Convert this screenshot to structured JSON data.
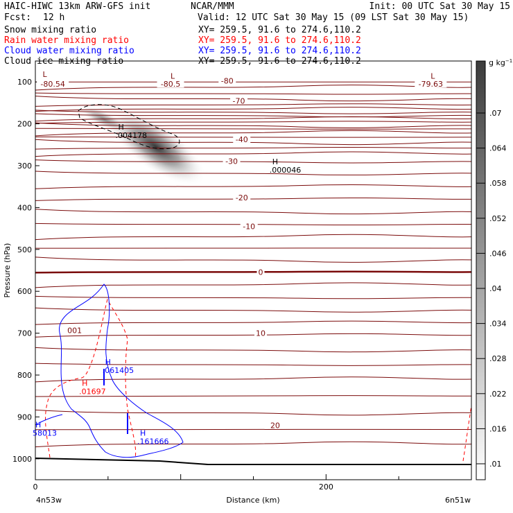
{
  "header": {
    "model": "HAIC-HIWC 13km ARW-GFS init",
    "org": "NCAR/MMM",
    "init": "Init: 00 UTC Sat 30 May 15",
    "fcst_label": "Fcst:",
    "fcst_value": "12 h",
    "valid": "Valid: 12 UTC Sat 30 May 15 (09 LST Sat 30 May 15)"
  },
  "fields": [
    {
      "name": "Snow mixing ratio",
      "xy": "XY= 259.5, 91.6 to 274.6,110.2",
      "color": "#000000"
    },
    {
      "name": "Rain water mixing ratio",
      "xy": "XY= 259.5, 91.6 to 274.6,110.2",
      "color": "#ff0000"
    },
    {
      "name": "Cloud water mixing ratio",
      "xy": "XY= 259.5, 91.6 to 274.6,110.2",
      "color": "#0000ff"
    },
    {
      "name": "Cloud ice mixing ratio",
      "xy": "XY= 259.5, 91.6 to 274.6,110.2",
      "color": "#000000"
    }
  ],
  "colorbar": {
    "unit": "g kg",
    "unit_exp": "−1",
    "labels": [
      ".07",
      ".064",
      ".058",
      ".052",
      ".046",
      ".04",
      ".034",
      ".028",
      ".022",
      ".016",
      ".01"
    ]
  },
  "chart_data": {
    "type": "cross-section",
    "xlabel": "Distance (km)",
    "ylabel": "Pressure (hPa)",
    "x_ticks": [
      "0",
      "200"
    ],
    "x_tick_values": [
      0,
      200
    ],
    "y_ticks": [
      "100",
      "200",
      "300",
      "400",
      "500",
      "600",
      "700",
      "800",
      "900",
      "1000"
    ],
    "y_tick_values": [
      100,
      200,
      300,
      400,
      500,
      600,
      700,
      800,
      900,
      1000
    ],
    "xlim": [
      0,
      300
    ],
    "ylim": [
      1050,
      50
    ],
    "endpoint_left": "4n53w",
    "endpoint_right": "6n51w",
    "temperature_contours": [
      {
        "value": "-80.54",
        "x": 12,
        "p": 105
      },
      {
        "value": "-80.5",
        "x": 93,
        "p": 105
      },
      {
        "value": "-80",
        "x": 132,
        "p": 97
      },
      {
        "value": "-79.63",
        "x": 272,
        "p": 105
      },
      {
        "value": "-70",
        "x": 140,
        "p": 145
      },
      {
        "value": "-40",
        "x": 142,
        "p": 237
      },
      {
        "value": "-30",
        "x": 135,
        "p": 289
      },
      {
        "value": "-20",
        "x": 142,
        "p": 376
      },
      {
        "value": "-10",
        "x": 147,
        "p": 445
      },
      {
        "value": "0",
        "x": 155,
        "p": 554
      },
      {
        "value": "10",
        "x": 155,
        "p": 700
      },
      {
        "value": "20",
        "x": 165,
        "p": 920
      }
    ],
    "extrema_labels": [
      {
        "kind": "L",
        "x": 5,
        "p": 88,
        "color": "#7a0a0a"
      },
      {
        "kind": "L",
        "x": 93,
        "p": 92,
        "color": "#7a0a0a"
      },
      {
        "kind": "L",
        "x": 272,
        "p": 92,
        "color": "#7a0a0a"
      },
      {
        "kind": "H",
        "value": ".004178",
        "x": 57,
        "p": 214,
        "color": "#000000"
      },
      {
        "kind": "H",
        "value": ".000046",
        "x": 163,
        "p": 297,
        "color": "#000000"
      },
      {
        "kind": "H",
        "value": ".061405",
        "x": 48,
        "p": 775,
        "color": "#0000ff"
      },
      {
        "kind": "H",
        "value": ".01697",
        "x": 32,
        "p": 826,
        "color": "#ff0000"
      },
      {
        "kind": "H",
        "value": "58013",
        "x": 0,
        "p": 925,
        "color": "#0000ff"
      },
      {
        "kind": "H",
        "value": ".161666",
        "x": 72,
        "p": 945,
        "color": "#0000ff"
      }
    ],
    "other_labels": [
      {
        "text": "001",
        "x": 22,
        "p": 700,
        "color": "#7a0a0a"
      }
    ]
  }
}
